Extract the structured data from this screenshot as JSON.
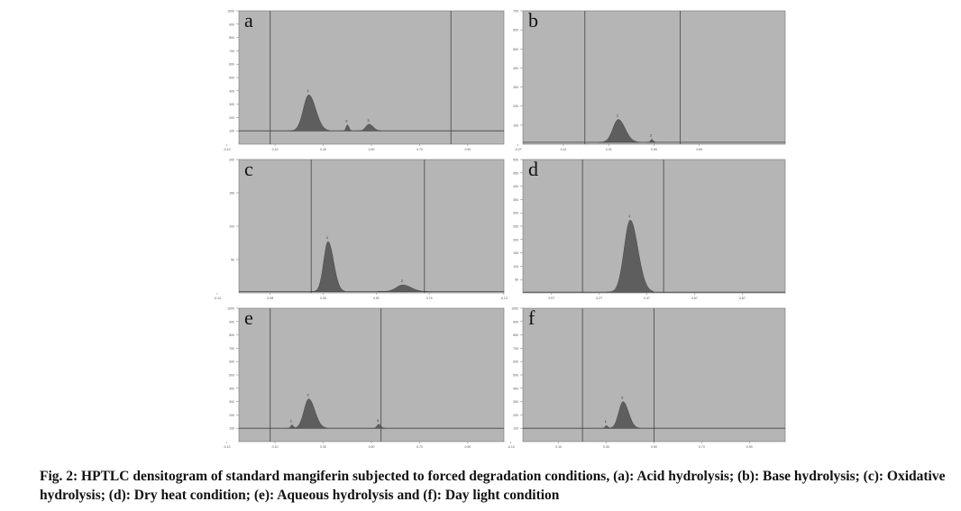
{
  "caption": "Fig. 2: HPTLC densitogram of standard mangiferin subjected to forced degradation conditions, (a): Acid hydrolysis; (b): Base hydrolysis; (c): Oxidative hydrolysis; (d): Dry heat condition; (e): Aqueous hydrolysis and (f): Day light condition",
  "colors": {
    "background": "#b5b5b5",
    "peak": "#5e5e5e",
    "line": "#444444",
    "frame": "#777777"
  },
  "chart_data": [
    {
      "type": "line",
      "panel_label": "a",
      "xlim": [
        -0.05,
        1.05
      ],
      "ylim": [
        0,
        1000
      ],
      "yticks": [
        100,
        200,
        300,
        400,
        500,
        600,
        700,
        800,
        900,
        1000
      ],
      "xticks": [
        -0.1,
        0.1,
        0.3,
        0.5,
        0.7,
        0.9
      ],
      "ytick_labels": [
        "100",
        "200",
        "300",
        "400",
        "500",
        "600",
        "700",
        "800",
        "900",
        "1000"
      ],
      "xtick_labels": [
        "-0.10",
        "0.10",
        "0.30",
        "0.50",
        "0.70",
        "0.90"
      ],
      "vertical_lines": [
        0.08,
        0.83
      ],
      "baseline": 100,
      "peaks": [
        {
          "label": "1",
          "rf": 0.24,
          "height": 270,
          "width": 0.025
        },
        {
          "label": "2",
          "rf": 0.4,
          "height": 45,
          "width": 0.006
        },
        {
          "label": "3",
          "rf": 0.49,
          "height": 50,
          "width": 0.015
        }
      ]
    },
    {
      "type": "line",
      "panel_label": "b",
      "xlim": [
        -0.05,
        1.05
      ],
      "ylim": [
        0,
        700
      ],
      "yticks": [
        100,
        200,
        300,
        400,
        500,
        600,
        700
      ],
      "xticks": [
        -0.07,
        0.12,
        0.31,
        0.5,
        0.69
      ],
      "ytick_labels": [
        "100",
        "200",
        "300",
        "400",
        "500",
        "600",
        "700"
      ],
      "xtick_labels": [
        "-0.07",
        "0.12",
        "0.31",
        "0.50",
        "0.69"
      ],
      "vertical_lines": [
        0.21,
        0.61
      ],
      "baseline": 10,
      "peaks": [
        {
          "label": "1",
          "rf": 0.35,
          "height": 120,
          "width": 0.025
        },
        {
          "label": "2",
          "rf": 0.49,
          "height": 15,
          "width": 0.006
        }
      ]
    },
    {
      "type": "line",
      "panel_label": "c",
      "xlim": [
        -0.05,
        1.05
      ],
      "ylim": [
        0,
        200
      ],
      "yticks": [
        50,
        100,
        150,
        200
      ],
      "xticks": [
        -0.14,
        0.08,
        0.3,
        0.52,
        0.74
      ],
      "ytick_labels": [
        "50",
        "100",
        "150",
        "200"
      ],
      "xtick_labels": [
        "-0.14",
        "0.08",
        "0.30",
        "0.52",
        "0.74"
      ],
      "vertical_lines": [
        0.25,
        0.72
      ],
      "baseline": 2,
      "peaks": [
        {
          "label": "1",
          "rf": 0.32,
          "height": 75,
          "width": 0.02
        },
        {
          "label": "2",
          "rf": 0.63,
          "height": 10,
          "width": 0.03
        }
      ]
    },
    {
      "type": "line",
      "panel_label": "d",
      "xlim": [
        -0.05,
        1.05
      ],
      "ylim": [
        0,
        500
      ],
      "yticks": [
        50,
        100,
        150,
        200,
        250,
        300,
        350,
        400,
        450,
        500
      ],
      "xticks": [
        -0.13,
        0.07,
        0.27,
        0.47,
        0.67,
        0.87
      ],
      "ytick_labels": [
        "50",
        "100",
        "150",
        "200",
        "250",
        "300",
        "350",
        "400",
        "450",
        "500"
      ],
      "xtick_labels": [
        "-0.13",
        "0.07",
        "0.27",
        "0.47",
        "0.67",
        "0.87"
      ],
      "vertical_lines": [
        0.2,
        0.54
      ],
      "baseline": 3,
      "peaks": [
        {
          "label": "1",
          "rf": 0.4,
          "height": 270,
          "width": 0.028
        }
      ]
    },
    {
      "type": "line",
      "panel_label": "e",
      "xlim": [
        -0.05,
        1.05
      ],
      "ylim": [
        0,
        1000
      ],
      "yticks": [
        100,
        200,
        300,
        400,
        500,
        600,
        700,
        800,
        900,
        1000
      ],
      "xticks": [
        -0.1,
        0.1,
        0.3,
        0.5,
        0.7,
        0.9
      ],
      "ytick_labels": [
        "100",
        "200",
        "300",
        "400",
        "500",
        "600",
        "700",
        "800",
        "900",
        "1000"
      ],
      "xtick_labels": [
        "-0.10",
        "0.10",
        "0.30",
        "0.50",
        "0.70",
        "0.90"
      ],
      "vertical_lines": [
        0.08,
        0.54
      ],
      "baseline": 100,
      "peaks": [
        {
          "label": "1",
          "rf": 0.17,
          "height": 25,
          "width": 0.006
        },
        {
          "label": "2",
          "rf": 0.24,
          "height": 220,
          "width": 0.022
        },
        {
          "label": "3",
          "rf": 0.53,
          "height": 30,
          "width": 0.008
        }
      ]
    },
    {
      "type": "line",
      "panel_label": "f",
      "xlim": [
        -0.05,
        1.05
      ],
      "ylim": [
        0,
        1000
      ],
      "yticks": [
        100,
        200,
        300,
        400,
        500,
        600,
        700,
        800,
        900,
        1000
      ],
      "xticks": [
        -0.1,
        0.1,
        0.3,
        0.5,
        0.7,
        0.9
      ],
      "ytick_labels": [
        "100",
        "200",
        "300",
        "400",
        "500",
        "600",
        "700",
        "800",
        "900",
        "1000"
      ],
      "xtick_labels": [
        "-0.10",
        "0.10",
        "0.30",
        "0.50",
        "0.70",
        "0.90"
      ],
      "vertical_lines": [
        0.2,
        0.5
      ],
      "baseline": 100,
      "peaks": [
        {
          "label": "1",
          "rf": 0.3,
          "height": 20,
          "width": 0.006
        },
        {
          "label": "2",
          "rf": 0.37,
          "height": 200,
          "width": 0.02
        }
      ]
    }
  ]
}
